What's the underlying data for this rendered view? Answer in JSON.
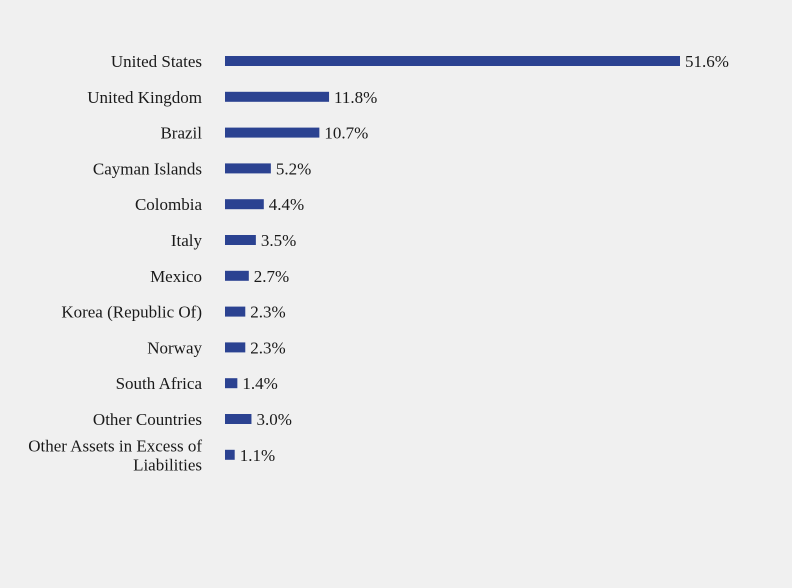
{
  "chart_data": {
    "type": "bar",
    "orientation": "horizontal",
    "title": "",
    "xlabel": "",
    "ylabel": "",
    "xlim": [
      0,
      51.6
    ],
    "grid": false,
    "legend": "none",
    "bar_color": "#2b4291",
    "value_suffix": "%",
    "categories": [
      "United States",
      "United Kingdom",
      "Brazil",
      "Cayman Islands",
      "Colombia",
      "Italy",
      "Mexico",
      "Korea (Republic Of)",
      "Norway",
      "South Africa",
      "Other Countries",
      "Other Assets in Excess of Liabilities"
    ],
    "category_lines": [
      [
        "United States"
      ],
      [
        "United Kingdom"
      ],
      [
        "Brazil"
      ],
      [
        "Cayman Islands"
      ],
      [
        "Colombia"
      ],
      [
        "Italy"
      ],
      [
        "Mexico"
      ],
      [
        "Korea (Republic Of)"
      ],
      [
        "Norway"
      ],
      [
        "South Africa"
      ],
      [
        "Other Countries"
      ],
      [
        "Other Assets in Excess of",
        "Liabilities"
      ]
    ],
    "values": [
      51.6,
      11.8,
      10.7,
      5.2,
      4.4,
      3.5,
      2.7,
      2.3,
      2.3,
      1.4,
      3.0,
      1.1
    ],
    "data_labels": [
      "51.6%",
      "11.8%",
      "10.7%",
      "5.2%",
      "4.4%",
      "3.5%",
      "2.7%",
      "2.3%",
      "2.3%",
      "1.4%",
      "3.0%",
      "1.1%"
    ]
  }
}
